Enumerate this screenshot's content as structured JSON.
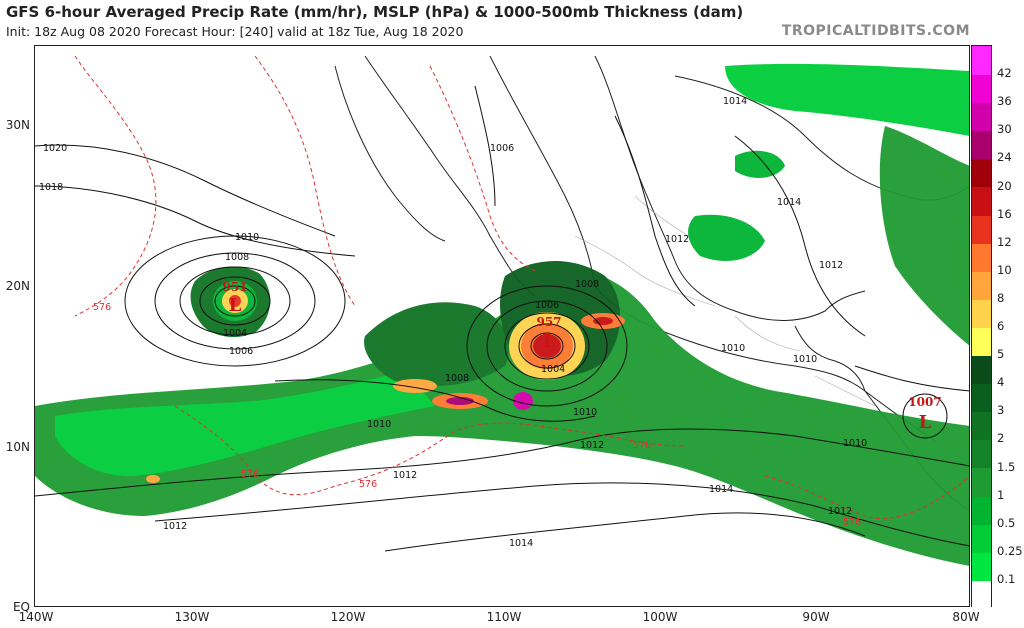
{
  "header": {
    "title": "GFS 6-hour Averaged Precip Rate (mm/hr), MSLP (hPa) & 1000-500mb Thickness (dam)",
    "subtitle": "Init: 18z Aug 08 2020   Forecast Hour: [240]   valid at 18z Tue, Aug 18 2020",
    "credit": "TROPICALTIDBITS.COM"
  },
  "axes": {
    "lat_labels": [
      "30N",
      "20N",
      "10N",
      "EQ"
    ],
    "lon_labels": [
      "140W",
      "130W",
      "120W",
      "110W",
      "100W",
      "90W",
      "80W"
    ]
  },
  "colorbar": {
    "levels": [
      "0.1",
      "0.25",
      "0.5",
      "1",
      "1.5",
      "2",
      "3",
      "4",
      "5",
      "6",
      "8",
      "10",
      "12",
      "16",
      "20",
      "24",
      "30",
      "36",
      "42"
    ],
    "colors": [
      "#ffffff",
      "#00e640",
      "#00cc38",
      "#00b432",
      "#1e9b32",
      "#148228",
      "#0f7323",
      "#0a5f1e",
      "#0a4b19",
      "#ffff5a",
      "#ffd24b",
      "#ffa53c",
      "#ff782d",
      "#e6321e",
      "#c80f14",
      "#a0000a",
      "#aa006e",
      "#d200aa",
      "#f000d2",
      "#ff28ff"
    ]
  },
  "lows": [
    {
      "pressure": "951",
      "symbol": "L"
    },
    {
      "pressure": "957",
      "symbol": "L"
    },
    {
      "pressure": "1007",
      "symbol": "L"
    }
  ],
  "isobar_labels": [
    "1020",
    "1018",
    "1010",
    "1008",
    "1004",
    "1006",
    "1006",
    "1004",
    "1006",
    "1008",
    "1008",
    "1010",
    "1012",
    "1012",
    "1014",
    "1014",
    "1014",
    "1014",
    "1012",
    "1010",
    "1010",
    "1010",
    "1012",
    "1012",
    "1010",
    "1012"
  ],
  "thickness_labels": [
    "576",
    "576",
    "576",
    "576",
    "576"
  ]
}
